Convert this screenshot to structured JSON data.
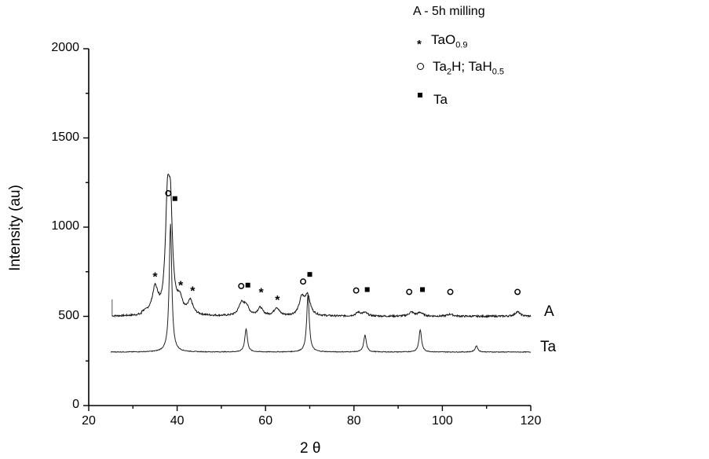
{
  "chart_data": {
    "type": "line",
    "title": "",
    "xlabel": "2 θ",
    "ylabel": "Intensity (au)",
    "xlim": [
      20,
      120
    ],
    "ylim": [
      0,
      2000
    ],
    "x_ticks": [
      20,
      40,
      60,
      80,
      100,
      120
    ],
    "y_ticks": [
      0,
      500,
      1000,
      1500,
      2000
    ],
    "grid": false,
    "legend": {
      "title": "A - 5h milling",
      "position": "top-right",
      "entries": [
        {
          "marker": "star",
          "label": "TaO",
          "sub": "0.9",
          "text": "TaO0.9"
        },
        {
          "marker": "open-circle",
          "label_parts": [
            "Ta",
            "2",
            "H; TaH",
            "0.5"
          ],
          "text": "Ta2H; TaH0.5"
        },
        {
          "marker": "filled-square",
          "label": "Ta",
          "text": "Ta"
        }
      ]
    },
    "series": [
      {
        "name": "A",
        "baseline": 500,
        "peaks": [
          {
            "x": 35.0,
            "y": 630
          },
          {
            "x": 37.8,
            "y": 1060
          },
          {
            "x": 38.5,
            "y": 1030
          },
          {
            "x": 40.6,
            "y": 580
          },
          {
            "x": 43.0,
            "y": 575
          },
          {
            "x": 54.5,
            "y": 565
          },
          {
            "x": 55.6,
            "y": 555
          },
          {
            "x": 58.8,
            "y": 545
          },
          {
            "x": 62.5,
            "y": 545
          },
          {
            "x": 68.2,
            "y": 595
          },
          {
            "x": 69.5,
            "y": 610
          },
          {
            "x": 81.0,
            "y": 520
          },
          {
            "x": 82.5,
            "y": 518
          },
          {
            "x": 93.0,
            "y": 522
          },
          {
            "x": 95.0,
            "y": 520
          },
          {
            "x": 101.8,
            "y": 512
          },
          {
            "x": 117.0,
            "y": 525
          }
        ]
      },
      {
        "name": "Ta",
        "baseline": 300,
        "peaks": [
          {
            "x": 38.5,
            "y": 1020
          },
          {
            "x": 55.6,
            "y": 430
          },
          {
            "x": 69.6,
            "y": 620
          },
          {
            "x": 82.5,
            "y": 395
          },
          {
            "x": 95.0,
            "y": 425
          },
          {
            "x": 107.7,
            "y": 335
          }
        ]
      }
    ],
    "annotations": [
      {
        "marker": "star",
        "x": 35.0,
        "y": 730
      },
      {
        "marker": "open-circle",
        "x": 38.0,
        "y": 1190
      },
      {
        "marker": "filled-square",
        "x": 39.5,
        "y": 1160
      },
      {
        "marker": "star",
        "x": 40.8,
        "y": 680
      },
      {
        "marker": "star",
        "x": 43.5,
        "y": 650
      },
      {
        "marker": "open-circle",
        "x": 54.5,
        "y": 670
      },
      {
        "marker": "filled-square",
        "x": 56.0,
        "y": 675
      },
      {
        "marker": "star",
        "x": 59.0,
        "y": 640
      },
      {
        "marker": "star",
        "x": 62.7,
        "y": 600
      },
      {
        "marker": "open-circle",
        "x": 68.5,
        "y": 695
      },
      {
        "marker": "filled-square",
        "x": 70.0,
        "y": 735
      },
      {
        "marker": "open-circle",
        "x": 80.5,
        "y": 645
      },
      {
        "marker": "filled-square",
        "x": 83.0,
        "y": 650
      },
      {
        "marker": "open-circle",
        "x": 92.5,
        "y": 637
      },
      {
        "marker": "filled-square",
        "x": 95.5,
        "y": 650
      },
      {
        "marker": "open-circle",
        "x": 101.8,
        "y": 637
      },
      {
        "marker": "open-circle",
        "x": 117.0,
        "y": 637
      }
    ],
    "series_labels": [
      {
        "text": "A",
        "x": 124,
        "y": 520
      },
      {
        "text": "Ta",
        "x": 124,
        "y": 330
      }
    ]
  },
  "labels": {
    "xlabel": "2 θ",
    "ylabel": "Intensity (au)",
    "legend_title": "A - 5h milling",
    "legend_1_main": "TaO",
    "legend_1_sub": "0.9",
    "legend_2_a": "Ta",
    "legend_2_sub1": "2",
    "legend_2_b": "H; TaH",
    "legend_2_sub2": "0.5",
    "legend_3": "Ta",
    "series_a": "A",
    "series_ta": "Ta"
  }
}
